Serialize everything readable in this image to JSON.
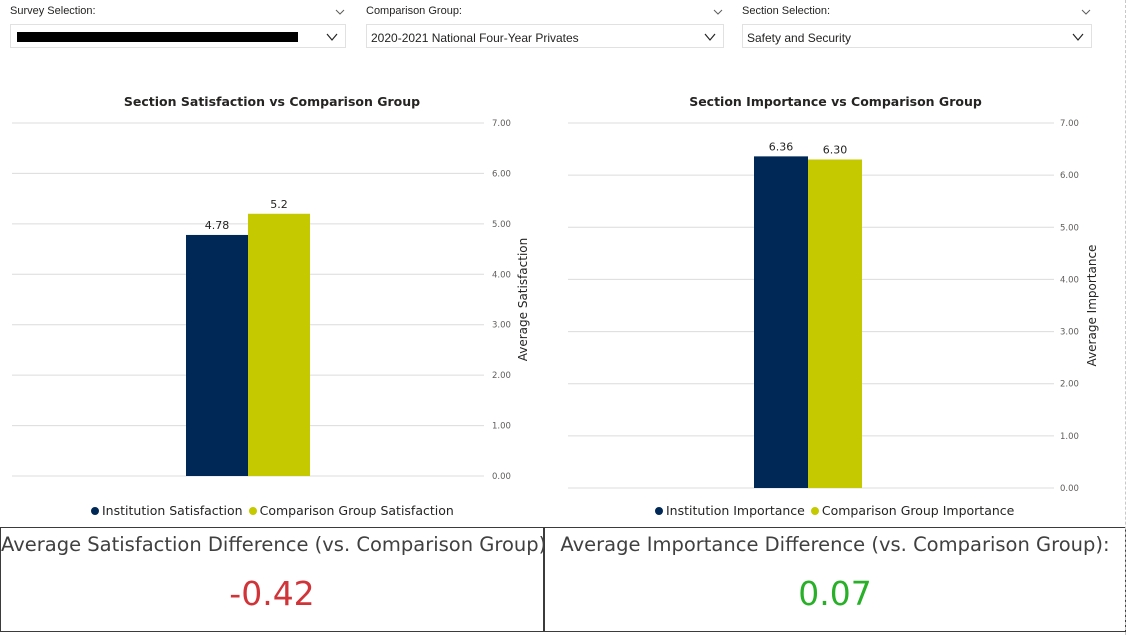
{
  "slicers": {
    "survey": {
      "label": "Survey Selection:",
      "value": "",
      "redacted": true
    },
    "comparison": {
      "label": "Comparison Group:",
      "value": "2020-2021 National Four-Year Privates"
    },
    "section": {
      "label": "Section Selection:",
      "value": "Safety and Security"
    }
  },
  "icons": {
    "header_chevron": "chevron-down-icon",
    "dropdown_chevron": "chevron-down-icon",
    "legend_marker": "circle-icon"
  },
  "colors": {
    "institution": "#002856",
    "comparison": "#c4c900",
    "negative": "#d13438",
    "positive": "#28b028",
    "gridline": "#dcdcdc",
    "tick": "#605e5c"
  },
  "chart_data": [
    {
      "type": "bar",
      "title": "Section Satisfaction vs Comparison Group",
      "xlabel": "",
      "ylabel": "Average Satisfaction",
      "ylim": [
        0,
        7
      ],
      "yticks": [
        "0.00",
        "1.00",
        "2.00",
        "3.00",
        "4.00",
        "5.00",
        "6.00",
        "7.00"
      ],
      "y_axis_position": "right",
      "grid": true,
      "legend_position": "bottom",
      "series": [
        {
          "name": "Institution Satisfaction",
          "values": [
            4.78
          ],
          "labels": [
            "4.78"
          ]
        },
        {
          "name": "Comparison Group Satisfaction",
          "values": [
            5.2
          ],
          "labels": [
            "5.2"
          ]
        }
      ]
    },
    {
      "type": "bar",
      "title": "Section Importance vs Comparison Group",
      "xlabel": "",
      "ylabel": "Average Importance",
      "ylim": [
        0,
        7
      ],
      "yticks": [
        "0.00",
        "1.00",
        "2.00",
        "3.00",
        "4.00",
        "5.00",
        "6.00",
        "7.00"
      ],
      "y_axis_position": "right",
      "grid": true,
      "legend_position": "bottom",
      "series": [
        {
          "name": "Institution Importance",
          "values": [
            6.36
          ],
          "labels": [
            "6.36"
          ]
        },
        {
          "name": "Comparison Group Importance",
          "values": [
            6.3
          ],
          "labels": [
            "6.30"
          ]
        }
      ]
    }
  ],
  "cards": {
    "satisfaction": {
      "label": "Average Satisfaction Difference (vs. Comparison Group):",
      "value": "-0.42",
      "sentiment": "negative"
    },
    "importance": {
      "label": "Average Importance Difference (vs. Comparison Group):",
      "value": "0.07",
      "sentiment": "positive"
    }
  }
}
